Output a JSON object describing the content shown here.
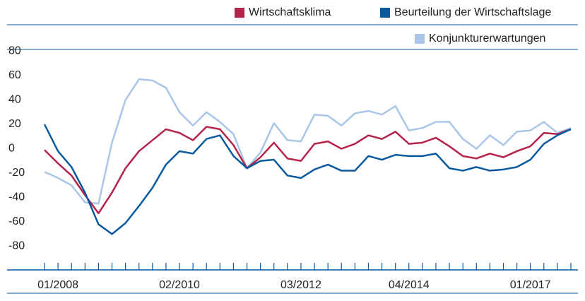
{
  "chart_data": {
    "type": "line",
    "categories": [
      null,
      "01/2008",
      null,
      null,
      null,
      null,
      null,
      null,
      null,
      null,
      "02/2010",
      null,
      null,
      null,
      null,
      null,
      null,
      null,
      null,
      "03/2012",
      null,
      null,
      null,
      null,
      null,
      null,
      null,
      "04/2014",
      null,
      null,
      null,
      null,
      null,
      null,
      null,
      null,
      "01/2017",
      null,
      null,
      null
    ],
    "series": [
      {
        "name": "Wirtschaftsklima",
        "color": "#b5234a",
        "values": [
          -1,
          -12,
          -22,
          -38,
          -53,
          -36,
          -16,
          -2,
          7,
          16,
          13,
          7,
          18,
          16,
          3,
          -16,
          -7,
          5,
          -8,
          -10,
          4,
          6,
          0,
          4,
          11,
          8,
          14,
          4,
          5,
          9,
          2,
          -6,
          -8,
          -4,
          -7,
          -2,
          2,
          13,
          12,
          16
        ]
      },
      {
        "name": "Beurteilung der Wirtschaftslage",
        "color": "#0a5aa0",
        "values": [
          20,
          -2,
          -15,
          -36,
          -62,
          -70,
          -61,
          -47,
          -32,
          -13,
          -2,
          -4,
          8,
          11,
          -6,
          -16,
          -10,
          -9,
          -22,
          -24,
          -17,
          -13,
          -18,
          -18,
          -6,
          -9,
          -5,
          -6,
          -6,
          -4,
          -16,
          -18,
          -15,
          -18,
          -17,
          -15,
          -9,
          4,
          11,
          16
        ]
      },
      {
        "name": "Konjunkturerwartungen",
        "color": "#a9c5e8",
        "values": [
          -19,
          -24,
          -30,
          -44,
          -45,
          5,
          40,
          57,
          56,
          50,
          30,
          19,
          30,
          22,
          12,
          -16,
          -3,
          21,
          7,
          6,
          28,
          27,
          19,
          29,
          31,
          28,
          35,
          15,
          17,
          22,
          22,
          8,
          0,
          11,
          3,
          14,
          15,
          22,
          13,
          17
        ]
      }
    ],
    "ylim": [
      -100,
      100
    ],
    "yticks": [
      -80,
      -60,
      -40,
      -20,
      0,
      20,
      40,
      60,
      80
    ]
  }
}
